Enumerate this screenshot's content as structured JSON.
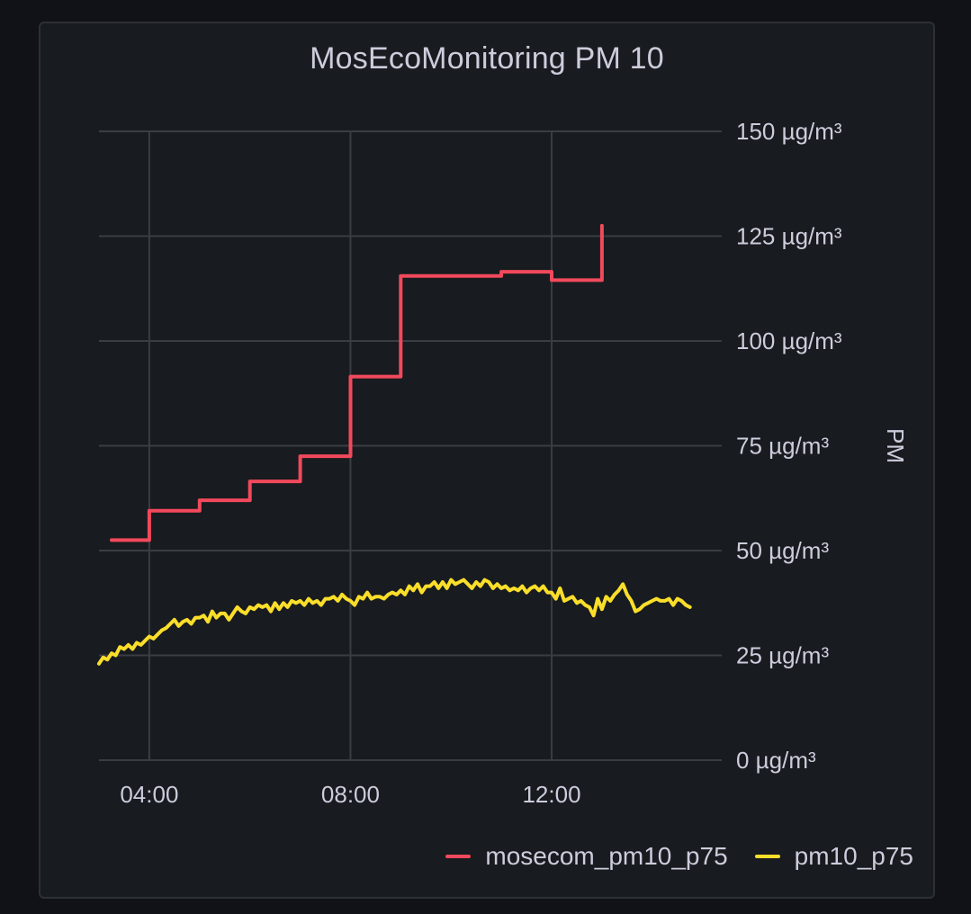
{
  "panel": {
    "title": "MosEcoMonitoring PM 10"
  },
  "chart_data": {
    "type": "line",
    "title": "MosEcoMonitoring PM 10",
    "xlabel": "",
    "ylabel": "PM",
    "y_axis_position": "right",
    "xlim": [
      "03:00",
      "15:10"
    ],
    "ylim": [
      0,
      150
    ],
    "x_ticks": [
      "04:00",
      "08:00",
      "12:00"
    ],
    "y_ticks": [
      {
        "value": 0,
        "label": "0 µg/m³"
      },
      {
        "value": 25,
        "label": "25 µg/m³"
      },
      {
        "value": 50,
        "label": "50 µg/m³"
      },
      {
        "value": 75,
        "label": "75 µg/m³"
      },
      {
        "value": 100,
        "label": "100 µg/m³"
      },
      {
        "value": 125,
        "label": "125 µg/m³"
      },
      {
        "value": 150,
        "label": "150 µg/m³"
      }
    ],
    "grid": true,
    "legend_position": "bottom-right",
    "series": [
      {
        "name": "mosecom_pm10_p75",
        "color": "#f2495c",
        "step": true,
        "points": [
          [
            "03:15",
            52.5
          ],
          [
            "04:00",
            59.5
          ],
          [
            "05:00",
            62.0
          ],
          [
            "06:00",
            66.5
          ],
          [
            "07:00",
            72.5
          ],
          [
            "08:00",
            91.5
          ],
          [
            "09:00",
            115.5
          ],
          [
            "11:00",
            116.5
          ],
          [
            "12:00",
            114.5
          ],
          [
            "13:00",
            127.5
          ]
        ]
      },
      {
        "name": "pm10_p75",
        "color": "#fade2a",
        "step": false,
        "points": [
          [
            "03:00",
            23.0
          ],
          [
            "03:05",
            24.5
          ],
          [
            "03:10",
            24.0
          ],
          [
            "03:15",
            25.5
          ],
          [
            "03:20",
            25.0
          ],
          [
            "03:25",
            27.0
          ],
          [
            "03:30",
            26.5
          ],
          [
            "03:35",
            27.5
          ],
          [
            "03:40",
            26.5
          ],
          [
            "03:45",
            28.0
          ],
          [
            "03:50",
            27.5
          ],
          [
            "03:55",
            28.5
          ],
          [
            "04:00",
            29.5
          ],
          [
            "04:05",
            29.0
          ],
          [
            "04:10",
            30.0
          ],
          [
            "04:15",
            31.0
          ],
          [
            "04:20",
            31.5
          ],
          [
            "04:25",
            32.5
          ],
          [
            "04:30",
            33.5
          ],
          [
            "04:35",
            32.0
          ],
          [
            "04:40",
            33.0
          ],
          [
            "04:45",
            33.5
          ],
          [
            "04:50",
            32.5
          ],
          [
            "04:55",
            34.0
          ],
          [
            "05:00",
            34.0
          ],
          [
            "05:05",
            34.5
          ],
          [
            "05:10",
            33.0
          ],
          [
            "05:15",
            35.5
          ],
          [
            "05:20",
            34.0
          ],
          [
            "05:25",
            35.0
          ],
          [
            "05:30",
            35.0
          ],
          [
            "05:35",
            33.5
          ],
          [
            "05:40",
            35.0
          ],
          [
            "05:45",
            36.5
          ],
          [
            "05:50",
            35.5
          ],
          [
            "05:55",
            35.0
          ],
          [
            "06:00",
            36.5
          ],
          [
            "06:05",
            36.0
          ],
          [
            "06:10",
            37.0
          ],
          [
            "06:15",
            36.5
          ],
          [
            "06:20",
            37.0
          ],
          [
            "06:25",
            35.5
          ],
          [
            "06:30",
            37.5
          ],
          [
            "06:35",
            36.0
          ],
          [
            "06:40",
            37.5
          ],
          [
            "06:45",
            36.5
          ],
          [
            "06:50",
            38.0
          ],
          [
            "06:55",
            37.5
          ],
          [
            "07:00",
            38.0
          ],
          [
            "07:05",
            37.0
          ],
          [
            "07:10",
            38.5
          ],
          [
            "07:15",
            37.5
          ],
          [
            "07:20",
            38.0
          ],
          [
            "07:25",
            37.0
          ],
          [
            "07:30",
            38.5
          ],
          [
            "07:35",
            38.5
          ],
          [
            "07:40",
            39.0
          ],
          [
            "07:45",
            38.0
          ],
          [
            "07:50",
            39.5
          ],
          [
            "07:55",
            38.5
          ],
          [
            "08:00",
            38.0
          ],
          [
            "08:05",
            37.0
          ],
          [
            "08:10",
            39.0
          ],
          [
            "08:15",
            38.5
          ],
          [
            "08:20",
            40.0
          ],
          [
            "08:25",
            38.5
          ],
          [
            "08:30",
            39.0
          ],
          [
            "08:35",
            39.0
          ],
          [
            "08:40",
            38.5
          ],
          [
            "08:45",
            39.5
          ],
          [
            "08:50",
            40.0
          ],
          [
            "08:55",
            39.5
          ],
          [
            "09:00",
            40.5
          ],
          [
            "09:05",
            39.5
          ],
          [
            "09:10",
            41.5
          ],
          [
            "09:15",
            40.5
          ],
          [
            "09:20",
            42.0
          ],
          [
            "09:25",
            40.0
          ],
          [
            "09:30",
            41.5
          ],
          [
            "09:35",
            41.5
          ],
          [
            "09:40",
            42.5
          ],
          [
            "09:45",
            41.0
          ],
          [
            "09:50",
            42.5
          ],
          [
            "09:55",
            41.0
          ],
          [
            "10:00",
            43.0
          ],
          [
            "10:05",
            42.0
          ],
          [
            "10:10",
            42.5
          ],
          [
            "10:15",
            43.0
          ],
          [
            "10:20",
            42.0
          ],
          [
            "10:25",
            41.0
          ],
          [
            "10:30",
            42.5
          ],
          [
            "10:35",
            41.5
          ],
          [
            "10:40",
            43.0
          ],
          [
            "10:45",
            42.5
          ],
          [
            "10:50",
            41.0
          ],
          [
            "10:55",
            42.0
          ],
          [
            "11:00",
            41.0
          ],
          [
            "11:05",
            41.5
          ],
          [
            "11:10",
            40.5
          ],
          [
            "11:15",
            41.0
          ],
          [
            "11:20",
            40.5
          ],
          [
            "11:25",
            41.5
          ],
          [
            "11:30",
            40.0
          ],
          [
            "11:35",
            41.0
          ],
          [
            "11:40",
            41.5
          ],
          [
            "11:45",
            40.5
          ],
          [
            "11:50",
            41.5
          ],
          [
            "11:55",
            40.0
          ],
          [
            "12:00",
            40.0
          ],
          [
            "12:05",
            38.5
          ],
          [
            "12:10",
            41.0
          ],
          [
            "12:15",
            38.0
          ],
          [
            "12:20",
            38.5
          ],
          [
            "12:25",
            39.0
          ],
          [
            "12:30",
            37.5
          ],
          [
            "12:35",
            38.0
          ],
          [
            "12:40",
            37.0
          ],
          [
            "12:45",
            36.5
          ],
          [
            "12:50",
            34.5
          ],
          [
            "12:55",
            38.5
          ],
          [
            "13:00",
            36.0
          ],
          [
            "13:05",
            39.0
          ],
          [
            "13:10",
            38.0
          ],
          [
            "13:15",
            39.5
          ],
          [
            "13:20",
            40.5
          ],
          [
            "13:25",
            42.0
          ],
          [
            "13:30",
            39.5
          ],
          [
            "13:35",
            38.0
          ],
          [
            "13:40",
            35.5
          ],
          [
            "13:45",
            36.0
          ],
          [
            "13:50",
            37.0
          ],
          [
            "13:55",
            37.5
          ],
          [
            "14:00",
            38.0
          ],
          [
            "14:05",
            38.5
          ],
          [
            "14:10",
            38.0
          ],
          [
            "14:15",
            38.0
          ],
          [
            "14:20",
            38.5
          ],
          [
            "14:25",
            37.0
          ],
          [
            "14:30",
            38.5
          ],
          [
            "14:35",
            38.0
          ],
          [
            "14:40",
            37.0
          ],
          [
            "14:45",
            36.5
          ]
        ]
      }
    ]
  }
}
